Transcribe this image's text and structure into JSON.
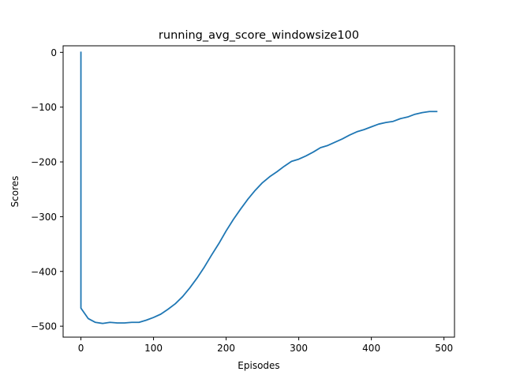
{
  "chart_data": {
    "type": "line",
    "title": "running_avg_score_windowsize100",
    "xlabel": "Episodes",
    "ylabel": "Scores",
    "xlim": [
      -24.5,
      514.5
    ],
    "ylim": [
      -520,
      12
    ],
    "xticks": [
      0,
      100,
      200,
      300,
      400,
      500
    ],
    "yticks": [
      0,
      -100,
      -200,
      -300,
      -400,
      -500
    ],
    "xtick_labels": [
      "0",
      "100",
      "200",
      "300",
      "400",
      "500"
    ],
    "ytick_labels": [
      "0",
      "−100",
      "−200",
      "−300",
      "−400",
      "−500"
    ],
    "grid": false,
    "series": [
      {
        "color": "#1f77b4",
        "x": [
          0,
          0,
          10,
          20,
          30,
          40,
          50,
          60,
          70,
          80,
          90,
          100,
          110,
          120,
          130,
          140,
          150,
          160,
          170,
          180,
          190,
          200,
          210,
          220,
          230,
          240,
          250,
          260,
          270,
          280,
          290,
          300,
          310,
          320,
          330,
          340,
          350,
          360,
          370,
          380,
          390,
          400,
          410,
          420,
          430,
          440,
          450,
          460,
          470,
          480,
          490
        ],
        "y": [
          0,
          -467,
          -486,
          -493,
          -495,
          -493,
          -494,
          -494,
          -493,
          -493,
          -489,
          -484,
          -478,
          -469,
          -459,
          -446,
          -430,
          -412,
          -392,
          -370,
          -349,
          -326,
          -305,
          -286,
          -268,
          -252,
          -238,
          -227,
          -218,
          -208,
          -199,
          -195,
          -189,
          -182,
          -174,
          -170,
          -164,
          -158,
          -151,
          -145,
          -141,
          -136,
          -131,
          -128,
          -126,
          -121,
          -118,
          -113,
          -110,
          -108,
          -108
        ]
      }
    ]
  }
}
